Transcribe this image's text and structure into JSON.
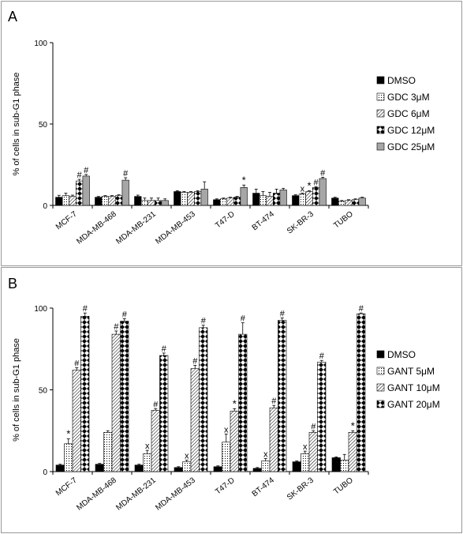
{
  "chart_data": [
    {
      "panel_label": "A",
      "type": "bar",
      "ylabel": "% of cells in sub-G1 phase",
      "ylim": [
        0,
        100
      ],
      "yticks": [
        "0",
        "50",
        "100"
      ],
      "categories": [
        "MCF-7",
        "MDA-MB-468",
        "MDA-MB-231",
        "MDA-MB-453",
        "T47-D",
        "BT-474",
        "SK-BR-3",
        "TUBO"
      ],
      "legend_position": "right",
      "series": [
        {
          "name": "DMSO",
          "pattern": "solid-black",
          "values": [
            5,
            5,
            5.5,
            8.5,
            3.5,
            7.5,
            6,
            4.5
          ],
          "errors": [
            1.2,
            0.5,
            0.8,
            0.5,
            0.5,
            2.5,
            0.5,
            0.5
          ],
          "marks": [
            "",
            "",
            "",
            "",
            "",
            "",
            "",
            ""
          ]
        },
        {
          "name": "GDC 3μM",
          "pattern": "dots",
          "values": [
            6,
            5.5,
            3,
            8,
            4,
            6,
            7,
            2.5
          ],
          "errors": [
            1.5,
            0.5,
            1.5,
            0.5,
            0.5,
            2.5,
            0.5,
            0.5
          ],
          "marks": [
            "",
            "",
            "",
            "",
            "",
            "",
            "x",
            ""
          ]
        },
        {
          "name": "GDC 6μM",
          "pattern": "hatch",
          "values": [
            5.5,
            5.5,
            3,
            8,
            4.5,
            5.5,
            8.5,
            3
          ],
          "errors": [
            0.8,
            0.5,
            1.5,
            0.5,
            0.5,
            2.5,
            0.5,
            0.5
          ],
          "marks": [
            "",
            "",
            "",
            "",
            "",
            "",
            "*",
            ""
          ]
        },
        {
          "name": "GDC 12μM",
          "pattern": "diamond",
          "values": [
            15,
            6,
            3,
            8.5,
            5,
            7.5,
            11,
            3.5
          ],
          "errors": [
            1,
            0.5,
            1.5,
            0.5,
            0.5,
            2.5,
            0.5,
            0.5
          ],
          "marks": [
            "#",
            "",
            "",
            "",
            "",
            "",
            "#",
            ""
          ]
        },
        {
          "name": "GDC 25μM",
          "pattern": "solid-gray",
          "values": [
            18,
            15.5,
            3,
            10,
            11,
            9.5,
            16.5,
            4.5
          ],
          "errors": [
            1,
            1.5,
            1,
            4.5,
            1.5,
            1,
            0.8,
            0.5
          ],
          "marks": [
            "#",
            "#",
            "",
            "",
            "*",
            "",
            "#",
            ""
          ]
        }
      ]
    },
    {
      "panel_label": "B",
      "type": "bar",
      "ylabel": "% of cells in sub-G1 phase",
      "ylim": [
        0,
        100
      ],
      "yticks": [
        "0",
        "50",
        "100"
      ],
      "categories": [
        "MCF-7",
        "MDA-MB-468",
        "MDA-MB-231",
        "MDA-MB-453",
        "T47-D",
        "BT-474",
        "SK-BR-3",
        "TUBO"
      ],
      "legend_position": "right",
      "series": [
        {
          "name": "DMSO",
          "pattern": "solid-black",
          "values": [
            4,
            4.5,
            4,
            2.5,
            3,
            2,
            6,
            8.5
          ],
          "errors": [
            0.5,
            0.5,
            0.5,
            0.5,
            0.5,
            0.5,
            0.5,
            0.5
          ],
          "marks": [
            "",
            "",
            "",
            "",
            "",
            "",
            "",
            ""
          ]
        },
        {
          "name": "GANT 5μM",
          "pattern": "dots",
          "values": [
            17,
            24,
            11,
            6,
            18,
            6.5,
            11,
            7
          ],
          "errors": [
            3,
            1,
            2,
            1,
            5,
            1.5,
            1.5,
            3.5
          ],
          "marks": [
            "*",
            "",
            "x",
            "x",
            "x",
            "x",
            "x",
            ""
          ]
        },
        {
          "name": "GANT 10μM",
          "pattern": "hatch",
          "values": [
            62,
            84,
            37.5,
            63,
            37,
            39,
            24,
            24
          ],
          "errors": [
            1.5,
            2,
            1,
            2,
            1.5,
            1.5,
            1,
            1
          ],
          "marks": [
            "#",
            "#",
            "#",
            "#",
            "*",
            "#",
            "#",
            "*"
          ]
        },
        {
          "name": "GANT 20μM",
          "pattern": "diamond",
          "values": [
            95,
            92,
            71,
            88,
            84,
            92.5,
            67,
            96.5
          ],
          "errors": [
            2,
            1.5,
            1.5,
            1.5,
            7,
            1.5,
            1,
            0.5
          ],
          "marks": [
            "#",
            "#",
            "#",
            "#",
            "#",
            "#",
            "#",
            "#"
          ]
        }
      ]
    }
  ]
}
